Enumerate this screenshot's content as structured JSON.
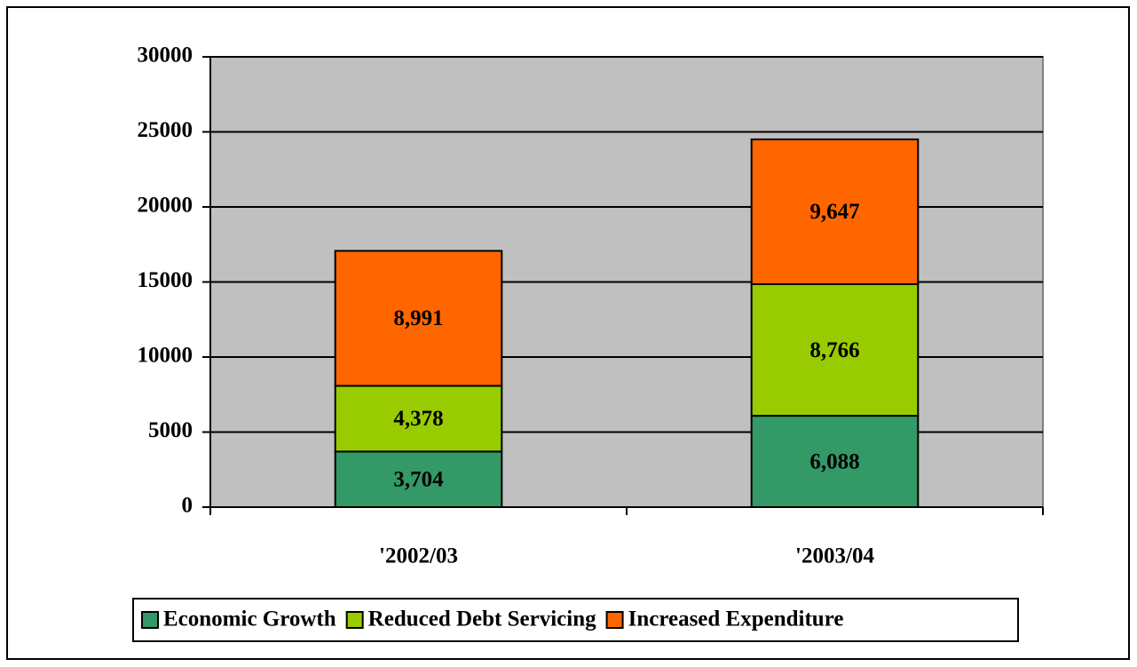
{
  "chart_data": {
    "type": "stacked_bar",
    "categories": [
      "'2002/03",
      "'2003/04"
    ],
    "series": [
      {
        "name": "Economic Growth",
        "color": "#339966",
        "values": [
          3704,
          6088
        ],
        "value_labels": [
          "3,704",
          "6,088"
        ]
      },
      {
        "name": "Reduced Debt Servicing",
        "color": "#99cc00",
        "values": [
          4378,
          8766
        ],
        "value_labels": [
          "4,378",
          "8,766"
        ]
      },
      {
        "name": "Increased Expenditure",
        "color": "#ff6600",
        "values": [
          8991,
          9647
        ],
        "value_labels": [
          "8,991",
          "9,647"
        ]
      }
    ],
    "ylim": [
      0,
      30000
    ],
    "yticks": [
      0,
      5000,
      10000,
      15000,
      20000,
      25000,
      30000
    ],
    "grid": true,
    "legend": "bottom",
    "plot_background": "#c0c0c0"
  }
}
